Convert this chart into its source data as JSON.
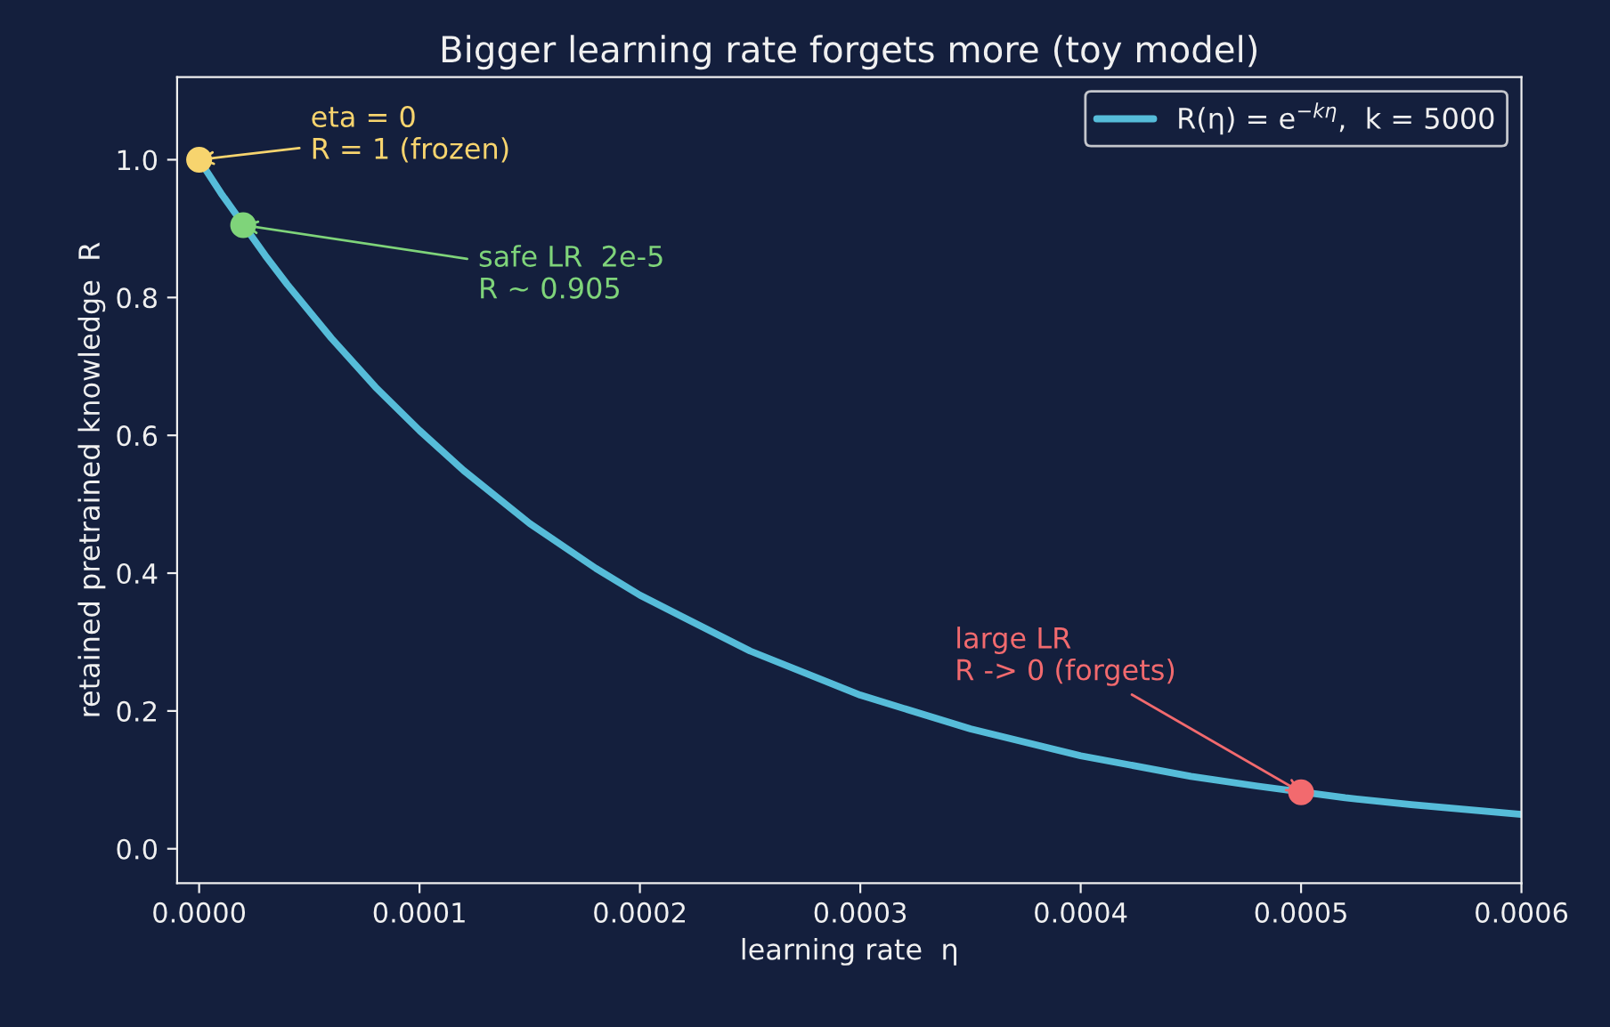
{
  "chart_data": {
    "type": "line",
    "title": "Bigger learning rate forgets more (toy model)",
    "xlabel": "learning rate  η",
    "ylabel": "retained pretrained knowledge  R",
    "series": [
      {
        "name": "R(η) = e$^{−kη}$,  k = 5000",
        "color": "#56bcd9",
        "x": [
          0,
          1e-05,
          3e-05,
          4e-05,
          6e-05,
          8e-05,
          0.0001,
          0.00012,
          0.00015,
          0.00018,
          0.0002,
          0.00025,
          0.0003,
          0.00035,
          0.0004,
          0.00045,
          0.00048,
          0.00052,
          0.00055,
          0.0006
        ],
        "values": [
          1.0,
          0.951,
          0.861,
          0.819,
          0.741,
          0.67,
          0.607,
          0.549,
          0.472,
          0.407,
          0.368,
          0.287,
          0.223,
          0.174,
          0.135,
          0.105,
          0.091,
          0.074,
          0.064,
          0.05
        ]
      },
      {
        "type": "scatter",
        "x": [
          0,
          2e-05,
          0.0005
        ],
        "values": [
          1.0,
          0.905,
          0.082
        ],
        "colors": [
          "#f7d46e",
          "#7fd47a",
          "#f26a6e"
        ]
      }
    ],
    "annotations": [
      {
        "text": "eta = 0\nR = 1 (frozen)",
        "x": 0,
        "y": 1.0
      },
      {
        "text": "safe LR  2e-5\nR ~ 0.905",
        "x": 2e-05,
        "y": 0.905
      },
      {
        "text": "large LR\nR -> 0 (forgets)",
        "x": 0.0005,
        "y": 0.082
      }
    ],
    "xlim": [
      -1e-05,
      0.0006
    ],
    "ylim": [
      -0.05,
      1.12
    ],
    "xticks": [
      {
        "value": 0,
        "label": "0.0000"
      },
      {
        "value": 0.0001,
        "label": "0.0001"
      },
      {
        "value": 0.0002,
        "label": "0.0002"
      },
      {
        "value": 0.0003,
        "label": "0.0003"
      },
      {
        "value": 0.0004,
        "label": "0.0004"
      },
      {
        "value": 0.0005,
        "label": "0.0005"
      },
      {
        "value": 0.0006,
        "label": "0.0006"
      }
    ],
    "yticks": [
      {
        "value": 0,
        "label": "0.0"
      },
      {
        "value": 0.2,
        "label": "0.2"
      },
      {
        "value": 0.4,
        "label": "0.4"
      },
      {
        "value": 0.6,
        "label": "0.6"
      },
      {
        "value": 0.8,
        "label": "0.8"
      },
      {
        "value": 1.0,
        "label": "1.0"
      }
    ],
    "legend": "top right",
    "grid": false
  }
}
